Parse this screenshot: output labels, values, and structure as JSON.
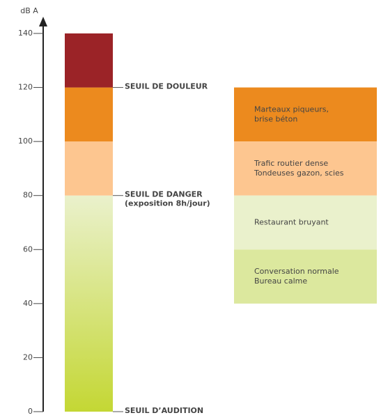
{
  "chart_data": {
    "type": "range",
    "ylabel": "dB A",
    "ylim": [
      0,
      140
    ],
    "yticks": [
      0,
      20,
      40,
      60,
      80,
      100,
      120,
      140
    ],
    "bar": [
      {
        "from": 0,
        "to": 80,
        "colors": [
          "#c4d734",
          "#eaf1cc"
        ]
      },
      {
        "from": 80,
        "to": 100,
        "colors": [
          "#fdc690",
          "#fdc690"
        ]
      },
      {
        "from": 100,
        "to": 120,
        "colors": [
          "#ec8a1e",
          "#ec8a1e"
        ]
      },
      {
        "from": 120,
        "to": 140,
        "colors": [
          "#9b2327",
          "#9b2327"
        ]
      }
    ],
    "thresholds": [
      {
        "value": 120,
        "label": "SEUIL DE DOULEUR",
        "color": "#a3262a"
      },
      {
        "value": 80,
        "label": "SEUIL DE DANGER",
        "note": "(exposition 8h/jour)",
        "color": "#e9a23b"
      },
      {
        "value": 0,
        "label": "SEUIL D’AUDITION",
        "color": "#8aa528"
      }
    ],
    "examples": [
      {
        "from": 100,
        "to": 120,
        "lines": [
          "Marteaux piqueurs,",
          "brise béton"
        ],
        "color": "#ec8a1e"
      },
      {
        "from": 80,
        "to": 100,
        "lines": [
          "Trafic routier dense",
          "Tondeuses gazon, scies"
        ],
        "color": "#fdc690"
      },
      {
        "from": 60,
        "to": 80,
        "lines": [
          "Restaurant bruyant"
        ],
        "color": "#eaf1cc"
      },
      {
        "from": 40,
        "to": 60,
        "lines": [
          "Conversation normale",
          "Bureau calme"
        ],
        "color": "#dce89e"
      }
    ]
  }
}
